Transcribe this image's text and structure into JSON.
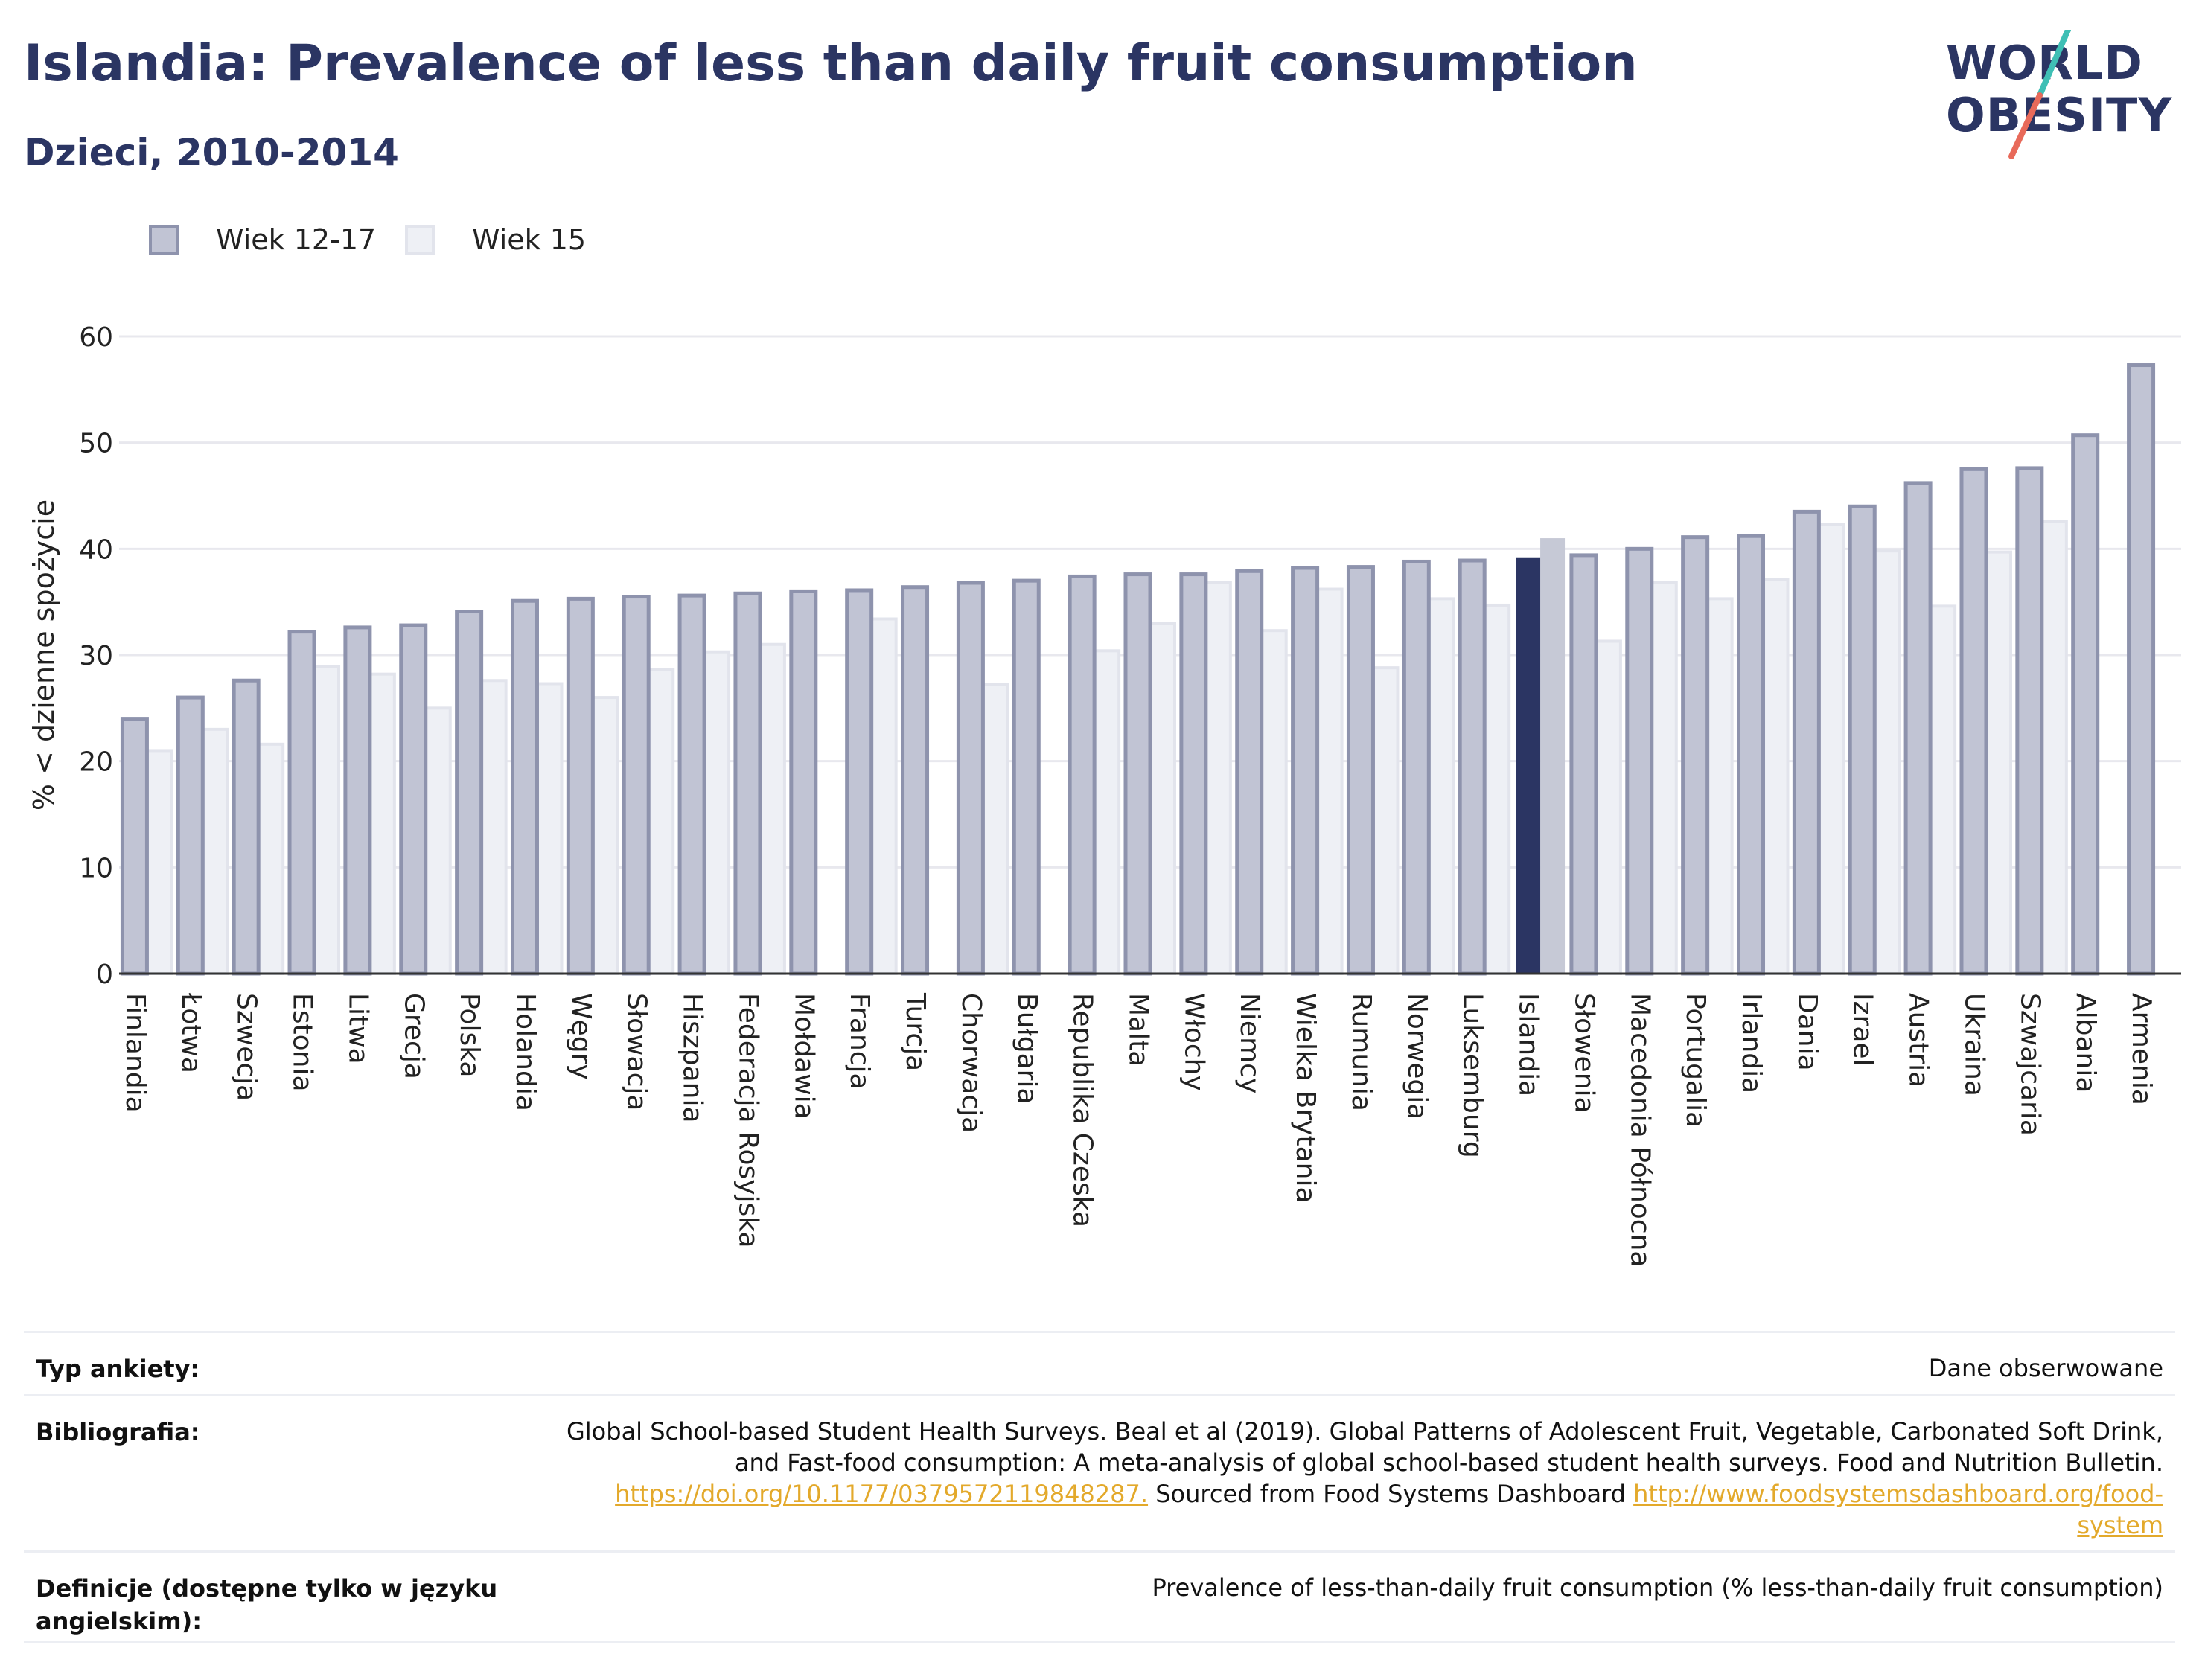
{
  "header": {
    "title": "Islandia: Prevalence of less than daily fruit consumption",
    "subtitle": "Dzieci, 2010-2014"
  },
  "logo": {
    "line1": "WORLD",
    "line2": "OBESITY",
    "colors": {
      "text": "#2b3563",
      "teal": "#3fbfb5",
      "coral": "#e86a5a"
    }
  },
  "colors": {
    "series1_fill": "#c1c4d4",
    "series1_stroke": "#8e93ad",
    "series2_fill": "#eef0f5",
    "series2_stroke": "#e2e4ec",
    "highlight1": "#2b3563",
    "highlight2": "#c6c9d6",
    "axis": "#333333",
    "grid": "#e8e8ee"
  },
  "chart_data": {
    "type": "bar",
    "ylabel": "% < dzienne spożycie",
    "ylim": [
      0,
      60
    ],
    "yticks": [
      0,
      10,
      20,
      30,
      40,
      50,
      60
    ],
    "grid": true,
    "legend_position": "top-left",
    "highlight": "Islandia",
    "categories": [
      "Finlandia",
      "Łotwa",
      "Szwecja",
      "Estonia",
      "Litwa",
      "Grecja",
      "Polska",
      "Holandia",
      "Węgry",
      "Słowacja",
      "Hiszpania",
      "Federacja Rosyjska",
      "Mołdawia",
      "Francja",
      "Turcja",
      "Chorwacja",
      "Bułgaria",
      "Republika Czeska",
      "Malta",
      "Włochy",
      "Niemcy",
      "Wielka Brytania",
      "Rumunia",
      "Norwegia",
      "Luksemburg",
      "Islandia",
      "Słowenia",
      "Macedonia Północna",
      "Portugalia",
      "Irlandia",
      "Dania",
      "Izrael",
      "Austria",
      "Ukraina",
      "Szwajcaria",
      "Albania",
      "Armenia"
    ],
    "series": [
      {
        "name": "Wiek 12-17",
        "values": [
          24.0,
          26.0,
          27.6,
          32.2,
          32.6,
          32.8,
          34.1,
          35.1,
          35.3,
          35.5,
          35.6,
          35.8,
          36.0,
          36.1,
          36.4,
          36.8,
          37.0,
          37.4,
          37.6,
          37.6,
          37.9,
          38.2,
          38.3,
          38.8,
          38.9,
          39.2,
          39.4,
          40.0,
          41.1,
          41.2,
          43.5,
          44.0,
          46.2,
          47.5,
          47.6,
          50.7,
          57.3
        ]
      },
      {
        "name": "Wiek 15",
        "values": [
          21.0,
          23.0,
          21.6,
          28.9,
          28.2,
          25.0,
          27.6,
          27.3,
          26.0,
          28.6,
          30.3,
          31.0,
          null,
          33.4,
          null,
          27.2,
          null,
          30.4,
          33.0,
          36.8,
          32.3,
          36.2,
          28.8,
          35.3,
          34.7,
          41.0,
          31.3,
          36.8,
          35.3,
          37.1,
          42.3,
          39.8,
          34.6,
          39.7,
          42.6,
          null,
          null
        ]
      }
    ]
  },
  "info": {
    "survey_label": "Typ ankiety:",
    "survey_value": "Dane obserwowane",
    "biblio_label": "Bibliografia:",
    "biblio_line1": "Global School-based Student Health Surveys. Beal et al (2019). Global Patterns of Adolescent Fruit, Vegetable, Carbonated Soft Drink,",
    "biblio_line2": "and Fast-food consumption: A meta-analysis of global school-based student health surveys. Food and Nutrition Bulletin.",
    "biblio_link1": "https://doi.org/10.1177/0379572119848287.",
    "biblio_mid": " Sourced from Food Systems Dashboard ",
    "biblio_link2": "http://www.foodsystemsdashboard.org/food-system",
    "def_label": "Definicje (dostępne tylko w języku angielskim):",
    "def_value": "Prevalence of less-than-daily fruit consumption (% less-than-daily fruit consumption)"
  }
}
